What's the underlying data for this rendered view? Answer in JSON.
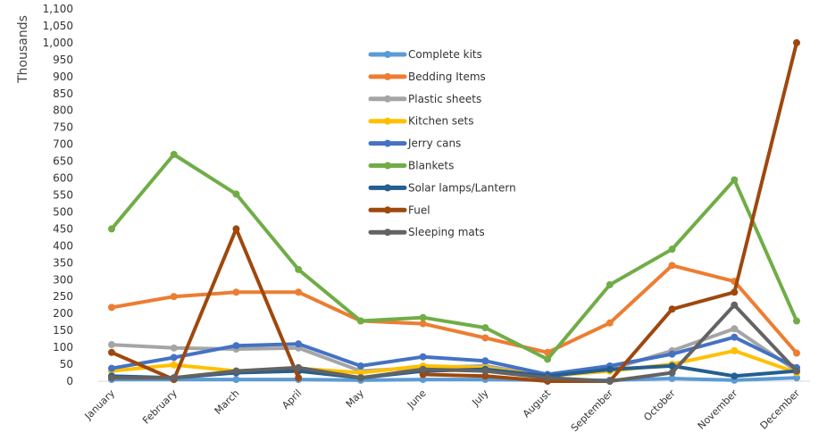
{
  "chart_data": {
    "type": "line",
    "ylabel": "Thousands",
    "ylim": [
      0,
      1100
    ],
    "ytick_step": 50,
    "categories": [
      "January",
      "February",
      "March",
      "April",
      "May",
      "June",
      "July",
      "August",
      "September",
      "October",
      "November",
      "December"
    ],
    "series": [
      {
        "name": "Complete kits",
        "color": "#5B9BD5",
        "values": [
          5,
          5,
          5,
          5,
          3,
          5,
          5,
          3,
          3,
          8,
          3,
          10
        ]
      },
      {
        "name": "Bedding Items",
        "color": "#ED7D31",
        "values": [
          218,
          250,
          263,
          263,
          178,
          170,
          128,
          85,
          172,
          342,
          295,
          83
        ]
      },
      {
        "name": "Plastic sheets",
        "color": "#A5A5A5",
        "values": [
          108,
          98,
          95,
          98,
          30,
          40,
          45,
          15,
          35,
          90,
          155,
          30
        ]
      },
      {
        "name": "Kitchen sets",
        "color": "#FFC000",
        "values": [
          30,
          48,
          30,
          38,
          25,
          45,
          40,
          15,
          30,
          50,
          90,
          25
        ]
      },
      {
        "name": "Jerry cans",
        "color": "#4472C4",
        "values": [
          38,
          70,
          105,
          110,
          45,
          72,
          60,
          20,
          45,
          80,
          130,
          40
        ]
      },
      {
        "name": "Blankets",
        "color": "#70AD47",
        "values": [
          450,
          670,
          553,
          330,
          178,
          188,
          158,
          65,
          285,
          390,
          595,
          178
        ]
      },
      {
        "name": "Solar lamps/Lantern",
        "color": "#255E91",
        "values": [
          15,
          10,
          25,
          30,
          10,
          30,
          35,
          15,
          35,
          45,
          15,
          30
        ]
      },
      {
        "name": "Fuel",
        "color": "#9E480E",
        "values": [
          85,
          5,
          450,
          10,
          null,
          20,
          15,
          0,
          0,
          213,
          263,
          1000
        ]
      },
      {
        "name": "Sleeping mats",
        "color": "#636363",
        "values": [
          10,
          10,
          30,
          40,
          10,
          35,
          30,
          10,
          0,
          25,
          225,
          30
        ]
      }
    ]
  }
}
